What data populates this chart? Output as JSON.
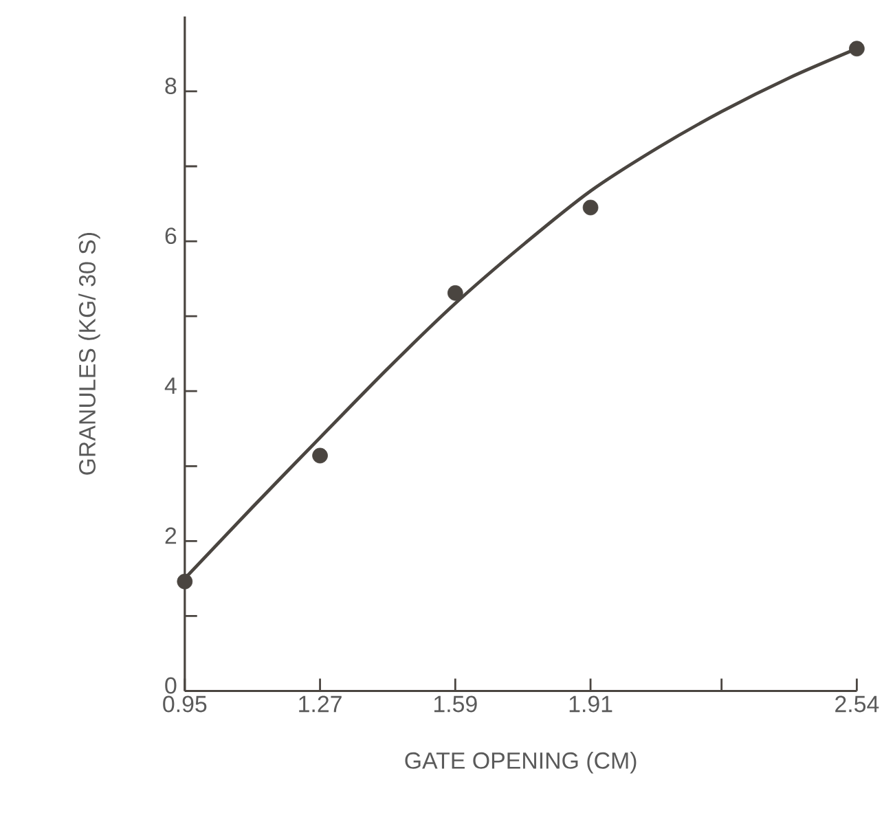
{
  "chart_data": {
    "type": "scatter",
    "xlabel": "GATE OPENING (CM)",
    "ylabel": "GRANULES (KG/ 30 S)",
    "series": [
      {
        "color": "#4a4540",
        "marker": "circle",
        "x": [
          0.95,
          1.27,
          1.59,
          1.91,
          2.54
        ],
        "values": [
          1.46,
          3.14,
          5.31,
          6.45,
          8.57
        ]
      },
      {
        "type": "line",
        "color": "#4a4540",
        "marker": "none",
        "line_style": "solid",
        "x": [
          0.95,
          1.11,
          1.27,
          1.43,
          1.59,
          1.75,
          1.91,
          2.07,
          2.22,
          2.38,
          2.54
        ],
        "values": [
          1.5,
          2.45,
          3.38,
          4.3,
          5.17,
          5.95,
          6.67,
          7.25,
          7.73,
          8.18,
          8.57
        ]
      }
    ],
    "xlim": [
      0.95,
      2.54
    ],
    "ylim": [
      0,
      9
    ],
    "xticks": [
      0.95,
      1.27,
      1.59,
      1.91,
      {
        "value": 2.22,
        "label": null
      },
      2.54
    ],
    "yticks": [
      0,
      {
        "value": 1,
        "label": null
      },
      2,
      {
        "value": 3,
        "label": null
      },
      4,
      {
        "value": 5,
        "label": null
      },
      6,
      {
        "value": 7,
        "label": null
      },
      8
    ],
    "grid": false
  }
}
